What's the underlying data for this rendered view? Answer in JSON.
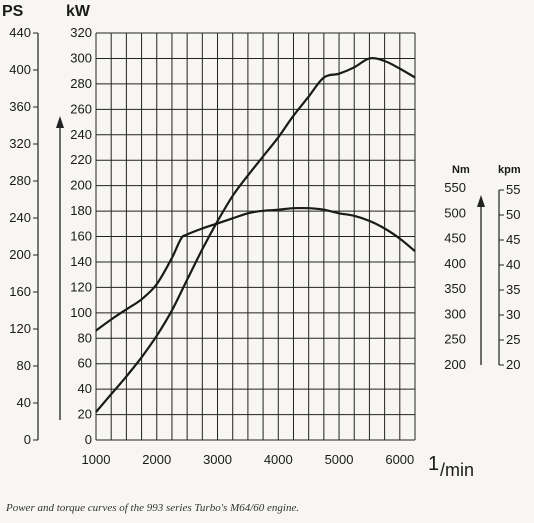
{
  "caption": "Power and torque curves of the 993 series Turbo's M64/60 engine.",
  "chart_data": {
    "type": "line",
    "title": "",
    "xlabel": "1/min",
    "xlabel_parts": {
      "num": "1",
      "den": "/min"
    },
    "xlim": [
      1000,
      6250
    ],
    "x_ticks": [
      1000,
      2000,
      3000,
      4000,
      5000,
      6000
    ],
    "grid": true,
    "axes": {
      "kw": {
        "label": "kW",
        "range": [
          0,
          320
        ],
        "ticks": [
          0,
          20,
          40,
          60,
          80,
          100,
          120,
          140,
          160,
          180,
          200,
          220,
          240,
          260,
          280,
          300,
          320
        ]
      },
      "ps": {
        "label": "PS",
        "range": [
          0,
          440
        ],
        "ticks": [
          0,
          40,
          80,
          120,
          160,
          200,
          240,
          280,
          320,
          360,
          400,
          440
        ]
      },
      "nm": {
        "label": "Nm",
        "range": [
          200,
          550
        ],
        "ticks": [
          200,
          250,
          300,
          350,
          400,
          450,
          500,
          550
        ]
      },
      "kpm": {
        "label": "kpm",
        "range": [
          20,
          55
        ],
        "ticks": [
          20,
          25,
          30,
          35,
          40,
          45,
          50,
          55
        ]
      }
    },
    "series": [
      {
        "axis": "kw",
        "x": [
          1000,
          1250,
          1500,
          1750,
          2000,
          2250,
          2500,
          2750,
          3000,
          3250,
          3500,
          3750,
          4000,
          4250,
          4500,
          4750,
          5000,
          5250,
          5500,
          5750,
          6000,
          6250
        ],
        "values": [
          22,
          36,
          50,
          65,
          82,
          102,
          126,
          150,
          172,
          192,
          208,
          223,
          238,
          255,
          270,
          285,
          288,
          293,
          300,
          298,
          292,
          285
        ]
      },
      {
        "axis": "nm",
        "x": [
          1000,
          1250,
          1500,
          1750,
          2000,
          2250,
          2400,
          2500,
          2750,
          3000,
          3250,
          3500,
          3750,
          4000,
          4250,
          4500,
          4750,
          5000,
          5250,
          5500,
          5750,
          6000,
          6250
        ],
        "values": [
          268,
          290,
          310,
          330,
          360,
          412,
          450,
          458,
          470,
          480,
          490,
          500,
          505,
          507,
          510,
          510,
          507,
          500,
          495,
          485,
          470,
          450,
          425
        ]
      }
    ]
  }
}
